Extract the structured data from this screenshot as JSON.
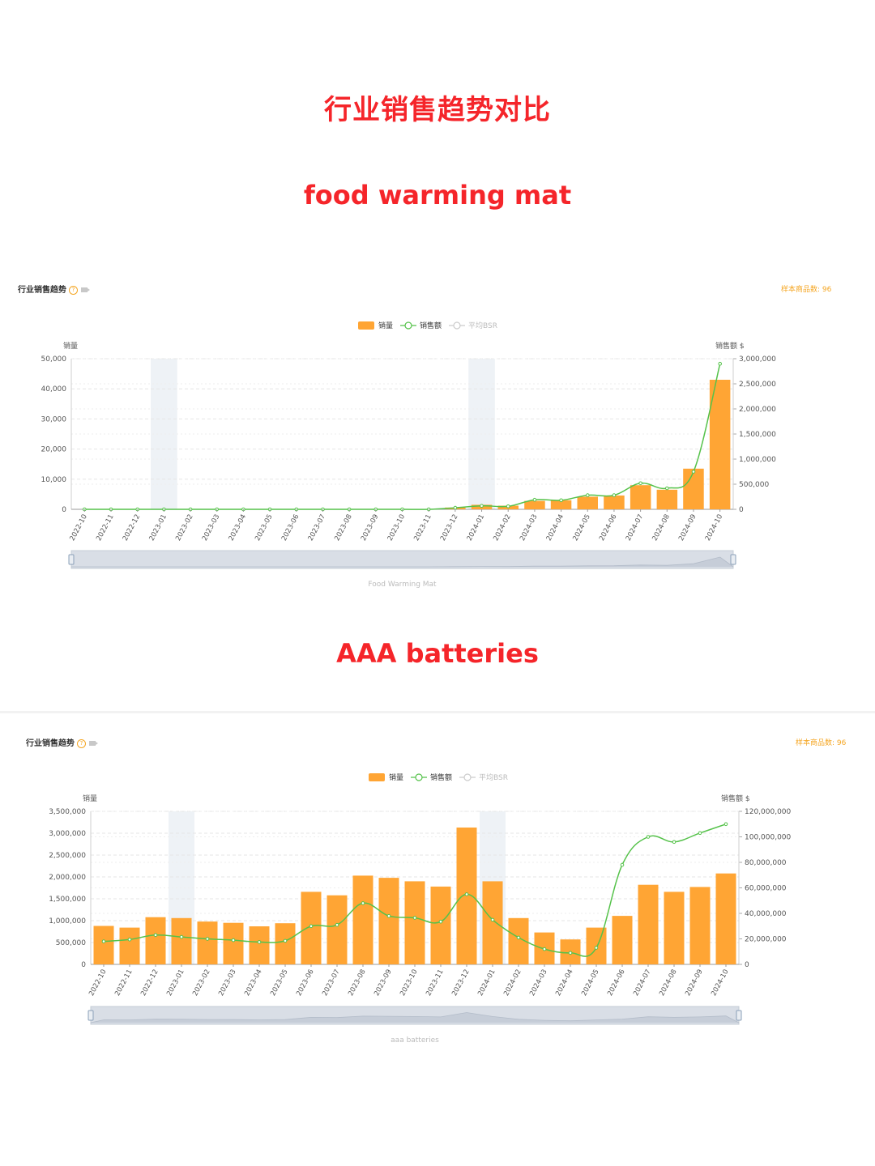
{
  "title": "行业销售趋势对比",
  "sections": [
    {
      "heading": "food warming mat"
    },
    {
      "heading": "AAA batteries"
    }
  ],
  "panel_title": "行业销售趋势",
  "sample_label": "样本商品数: 96",
  "colors": {
    "bar": "#ffa534",
    "line": "#55c24a",
    "headline": "#f5252a",
    "highlight": "#eef2f6",
    "sample": "#f5a623"
  },
  "icons": [
    "help-icon",
    "video-icon"
  ],
  "chart_data": [
    {
      "type": "bar",
      "product_label": "Food Warming Mat",
      "legend": {
        "bar": "销量",
        "line": "销售额",
        "bsr": "平均BSR"
      },
      "ylabel_left": "销量",
      "ylabel_right": "销售额 $",
      "ylim_left": [
        0,
        50000
      ],
      "ylim_right": [
        0,
        3000000
      ],
      "yticks_left": [
        "50,000",
        "40,000",
        "30,000",
        "20,000",
        "10,000",
        "0"
      ],
      "yticks_right": [
        "3,000,000",
        "2,500,000",
        "2,000,000",
        "1,500,000",
        "1,000,000",
        "500,000",
        "0"
      ],
      "categories": [
        "2022-10",
        "2022-11",
        "2022-12",
        "2023-01",
        "2023-02",
        "2023-03",
        "2023-04",
        "2023-05",
        "2023-06",
        "2023-07",
        "2023-08",
        "2023-09",
        "2023-10",
        "2023-11",
        "2023-12",
        "2024-01",
        "2024-02",
        "2024-03",
        "2024-04",
        "2024-05",
        "2024-06",
        "2024-07",
        "2024-08",
        "2024-09",
        "2024-10"
      ],
      "highlight_months": [
        "2023-01",
        "2024-01"
      ],
      "series": [
        {
          "name": "销量",
          "type": "bar",
          "values": [
            0,
            0,
            0,
            0,
            0,
            0,
            0,
            0,
            0,
            0,
            0,
            0,
            0,
            0,
            600,
            1500,
            1200,
            2800,
            3000,
            4200,
            4600,
            8000,
            6500,
            13500,
            43000
          ]
        },
        {
          "name": "销售额",
          "type": "line",
          "values": [
            0,
            0,
            0,
            0,
            0,
            0,
            0,
            0,
            0,
            0,
            0,
            0,
            0,
            0,
            30000,
            70000,
            60000,
            190000,
            180000,
            280000,
            280000,
            520000,
            420000,
            750000,
            2900000
          ]
        }
      ],
      "grid": true,
      "legend_position": "top-center"
    },
    {
      "type": "bar",
      "product_label": "aaa batteries",
      "legend": {
        "bar": "销量",
        "line": "销售额",
        "bsr": "平均BSR"
      },
      "ylabel_left": "销量",
      "ylabel_right": "销售额 $",
      "ylim_left": [
        0,
        3500000
      ],
      "ylim_right": [
        0,
        120000000
      ],
      "yticks_left": [
        "3,500,000",
        "3,000,000",
        "2,500,000",
        "2,000,000",
        "1,500,000",
        "1,000,000",
        "500,000",
        "0"
      ],
      "yticks_right": [
        "120,000,000",
        "100,000,000",
        "80,000,000",
        "60,000,000",
        "40,000,000",
        "20,000,000",
        "0"
      ],
      "categories": [
        "2022-10",
        "2022-11",
        "2022-12",
        "2023-01",
        "2023-02",
        "2023-03",
        "2023-04",
        "2023-05",
        "2023-06",
        "2023-07",
        "2023-08",
        "2023-09",
        "2023-10",
        "2023-11",
        "2023-12",
        "2024-01",
        "2024-02",
        "2024-03",
        "2024-04",
        "2024-05",
        "2024-06",
        "2024-07",
        "2024-08",
        "2024-09",
        "2024-10"
      ],
      "highlight_months": [
        "2023-01",
        "2024-01"
      ],
      "series": [
        {
          "name": "销量",
          "type": "bar",
          "values": [
            880000,
            840000,
            1080000,
            1060000,
            980000,
            950000,
            870000,
            940000,
            1660000,
            1580000,
            2030000,
            1980000,
            1900000,
            1780000,
            3130000,
            1900000,
            1060000,
            730000,
            570000,
            840000,
            1110000,
            1820000,
            1660000,
            1770000,
            2080000
          ]
        },
        {
          "name": "销售额",
          "type": "line",
          "values": [
            18000000,
            19500000,
            23000000,
            21500000,
            20000000,
            19000000,
            17500000,
            18500000,
            30000000,
            31000000,
            48000000,
            38000000,
            36500000,
            33500000,
            55000000,
            35000000,
            21000000,
            12000000,
            9000000,
            13000000,
            78000000,
            100000000,
            96000000,
            103000000,
            110000000
          ]
        }
      ],
      "grid": true,
      "legend_position": "top-center"
    }
  ]
}
